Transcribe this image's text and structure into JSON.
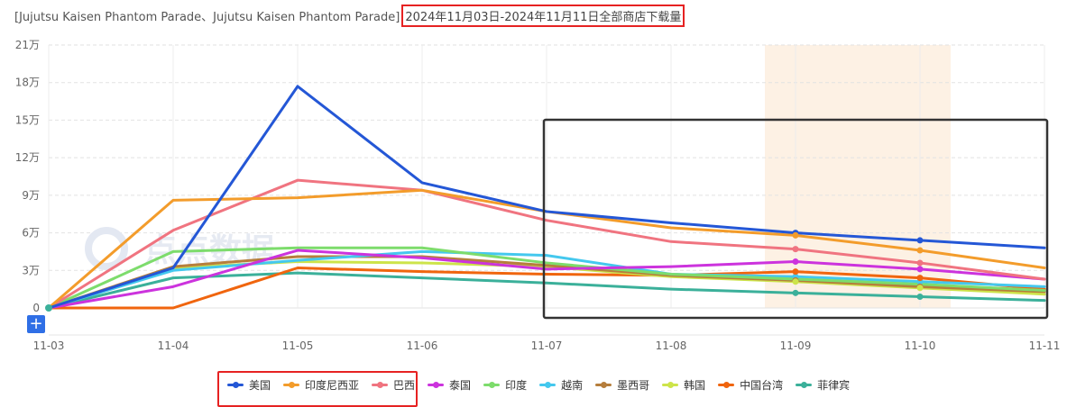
{
  "header": {
    "title_prefix": "[Jujutsu Kaisen Phantom Parade、Jujutsu Kaisen Phantom Parade]",
    "title_highlight": "2024年11月03日-2024年11月11日全部商店下载量"
  },
  "watermark": "点点数据",
  "zoom_button_label": "+",
  "colors": {
    "highlight_box": "#e62222",
    "selection_box": "#333333",
    "shaded_band": "#fdf1e4"
  },
  "chart_data": {
    "type": "line",
    "categories": [
      "11-03",
      "11-04",
      "11-05",
      "11-06",
      "11-07",
      "11-08",
      "11-09",
      "11-10",
      "11-11"
    ],
    "y_ticks": [
      "0",
      "3万",
      "6万",
      "9万",
      "12万",
      "15万",
      "18万",
      "21万"
    ],
    "ylim": [
      0,
      210000
    ],
    "grid": true,
    "legend_position": "bottom",
    "series": [
      {
        "name": "美国",
        "color": "#2457d6",
        "values": [
          0,
          32000,
          177000,
          100000,
          77000,
          68000,
          60000,
          54000,
          48000
        ]
      },
      {
        "name": "印度尼西亚",
        "color": "#f39c2b",
        "values": [
          0,
          86000,
          88000,
          94000,
          77000,
          64000,
          58000,
          46000,
          32000
        ]
      },
      {
        "name": "巴西",
        "color": "#f07480",
        "values": [
          0,
          62000,
          102000,
          94000,
          70000,
          53000,
          47000,
          36000,
          23000
        ]
      },
      {
        "name": "泰国",
        "color": "#cc33dd",
        "values": [
          0,
          17000,
          46000,
          40000,
          31000,
          33000,
          37000,
          31000,
          23000
        ]
      },
      {
        "name": "印度",
        "color": "#7ddc6c",
        "values": [
          0,
          45000,
          48000,
          48000,
          36000,
          27000,
          23000,
          19000,
          14000
        ]
      },
      {
        "name": "越南",
        "color": "#44c8ee",
        "values": [
          0,
          30000,
          38000,
          45000,
          42000,
          27000,
          25000,
          21000,
          17000
        ]
      },
      {
        "name": "墨西哥",
        "color": "#b67e3c",
        "values": [
          0,
          33000,
          41000,
          41000,
          34000,
          26000,
          22000,
          17000,
          13000
        ]
      },
      {
        "name": "韩国",
        "color": "#cde44a",
        "values": [
          0,
          32000,
          37000,
          36000,
          33000,
          25000,
          21000,
          16000,
          11000
        ]
      },
      {
        "name": "中国台湾",
        "color": "#f0650e",
        "values": [
          0,
          0,
          32000,
          29000,
          27000,
          26000,
          29000,
          24000,
          15000
        ]
      },
      {
        "name": "菲律宾",
        "color": "#3bb09a",
        "values": [
          0,
          24000,
          28000,
          24000,
          20000,
          15000,
          12000,
          9000,
          6000
        ]
      }
    ]
  }
}
